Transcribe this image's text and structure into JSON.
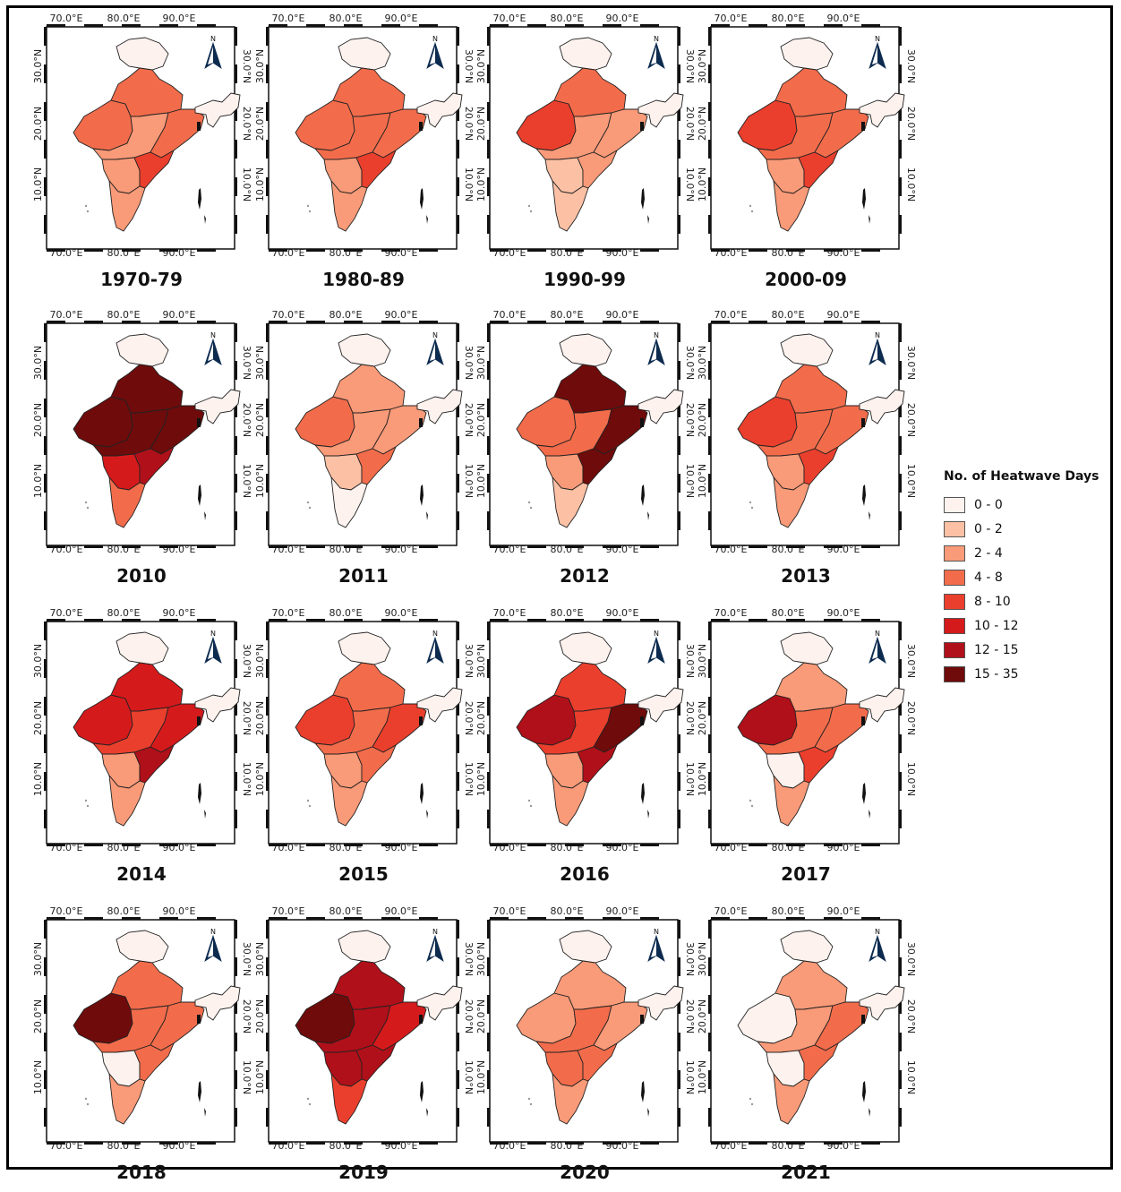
{
  "ticks": {
    "lon": [
      "70.0°E",
      "80.0°E",
      "90.0°E"
    ],
    "lat": [
      "30.0°N",
      "20.0°N",
      "10.0°N"
    ]
  },
  "north_label": "N",
  "legend": {
    "title": "No. of Heatwave Days",
    "items": [
      {
        "label": "0 - 0",
        "color": "#fdf2ee"
      },
      {
        "label": "0 - 2",
        "color": "#fcc0a4"
      },
      {
        "label": "2 - 4",
        "color": "#f99a78"
      },
      {
        "label": "4 - 8",
        "color": "#f26c4b"
      },
      {
        "label": "8 - 10",
        "color": "#ea3f2d"
      },
      {
        "label": "10 - 12",
        "color": "#d51a1c"
      },
      {
        "label": "12 - 15",
        "color": "#b01019"
      },
      {
        "label": "15 - 35",
        "color": "#6f0b0b"
      }
    ]
  },
  "panels": [
    {
      "label": "1970-79",
      "fill": {
        "kashmir": 0,
        "west": 3,
        "north": 3,
        "central": 2,
        "south_central": 2,
        "east": 3,
        "southeast": 4,
        "south": 2,
        "northeast": 0
      }
    },
    {
      "label": "1980-89",
      "fill": {
        "kashmir": 0,
        "west": 3,
        "north": 3,
        "central": 3,
        "south_central": 2,
        "east": 3,
        "southeast": 4,
        "south": 2,
        "northeast": 0
      }
    },
    {
      "label": "1990-99",
      "fill": {
        "kashmir": 0,
        "west": 4,
        "north": 3,
        "central": 2,
        "south_central": 1,
        "east": 2,
        "southeast": 2,
        "south": 1,
        "northeast": 0
      }
    },
    {
      "label": "2000-09",
      "fill": {
        "kashmir": 0,
        "west": 4,
        "north": 3,
        "central": 3,
        "south_central": 2,
        "east": 3,
        "southeast": 4,
        "south": 2,
        "northeast": 0
      }
    },
    {
      "label": "2010",
      "fill": {
        "kashmir": 0,
        "west": 7,
        "north": 7,
        "central": 7,
        "south_central": 5,
        "east": 7,
        "southeast": 6,
        "south": 3,
        "northeast": 0
      }
    },
    {
      "label": "2011",
      "fill": {
        "kashmir": 0,
        "west": 3,
        "north": 2,
        "central": 2,
        "south_central": 1,
        "east": 2,
        "southeast": 3,
        "south": 0,
        "northeast": 0
      }
    },
    {
      "label": "2012",
      "fill": {
        "kashmir": 0,
        "west": 3,
        "north": 7,
        "central": 3,
        "south_central": 2,
        "east": 7,
        "southeast": 7,
        "south": 1,
        "northeast": 0
      }
    },
    {
      "label": "2013",
      "fill": {
        "kashmir": 0,
        "west": 4,
        "north": 3,
        "central": 3,
        "south_central": 2,
        "east": 3,
        "southeast": 4,
        "south": 2,
        "northeast": 0
      }
    },
    {
      "label": "2014",
      "fill": {
        "kashmir": 0,
        "west": 5,
        "north": 5,
        "central": 4,
        "south_central": 2,
        "east": 5,
        "southeast": 6,
        "south": 2,
        "northeast": 0
      }
    },
    {
      "label": "2015",
      "fill": {
        "kashmir": 0,
        "west": 4,
        "north": 3,
        "central": 3,
        "south_central": 2,
        "east": 4,
        "southeast": 3,
        "south": 2,
        "northeast": 0
      }
    },
    {
      "label": "2016",
      "fill": {
        "kashmir": 0,
        "west": 6,
        "north": 4,
        "central": 4,
        "south_central": 2,
        "east": 7,
        "southeast": 6,
        "south": 2,
        "northeast": 0
      }
    },
    {
      "label": "2017",
      "fill": {
        "kashmir": 0,
        "west": 6,
        "north": 2,
        "central": 3,
        "south_central": 0,
        "east": 3,
        "southeast": 4,
        "south": 2,
        "northeast": 0
      }
    },
    {
      "label": "2018",
      "fill": {
        "kashmir": 0,
        "west": 7,
        "north": 3,
        "central": 3,
        "south_central": 0,
        "east": 3,
        "southeast": 3,
        "south": 2,
        "northeast": 0
      }
    },
    {
      "label": "2019",
      "fill": {
        "kashmir": 0,
        "west": 7,
        "north": 6,
        "central": 6,
        "south_central": 6,
        "east": 5,
        "southeast": 6,
        "south": 4,
        "northeast": 0
      }
    },
    {
      "label": "2020",
      "fill": {
        "kashmir": 0,
        "west": 2,
        "north": 2,
        "central": 3,
        "south_central": 3,
        "east": 2,
        "southeast": 3,
        "south": 2,
        "northeast": 0
      }
    },
    {
      "label": "2021",
      "fill": {
        "kashmir": 0,
        "west": 0,
        "north": 2,
        "central": 2,
        "south_central": 0,
        "east": 3,
        "southeast": 3,
        "south": 2,
        "northeast": 0
      }
    }
  ]
}
